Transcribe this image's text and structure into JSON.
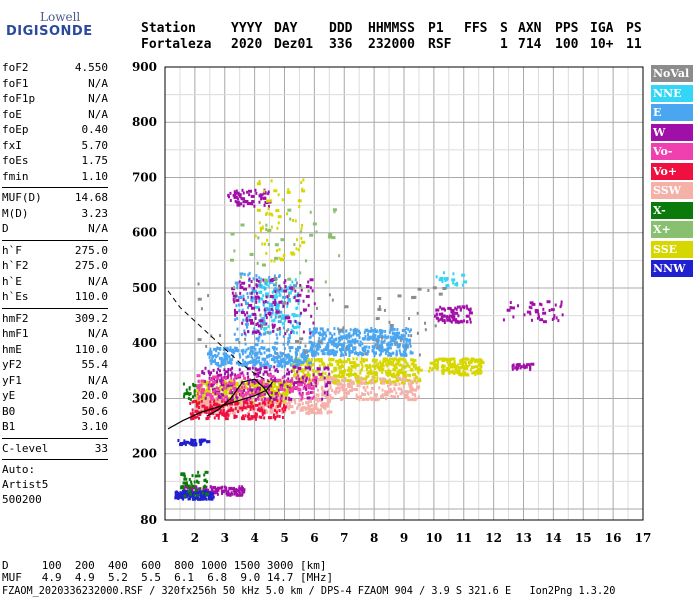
{
  "logo": {
    "line1": "Lowell",
    "line2": "DIGISONDE"
  },
  "header": {
    "labels": [
      "Station",
      "YYYY",
      "DAY",
      "DDD",
      "HHMMSS",
      "P1",
      "FFS",
      "S",
      "AXN",
      "PPS",
      "IGA",
      "PS"
    ],
    "values": [
      "Fortaleza",
      "2020",
      "Dez01",
      "336",
      "232000",
      "RSF",
      "1",
      "714",
      "100",
      "10+",
      "11"
    ]
  },
  "params": {
    "group1": [
      [
        "foF2",
        "4.550"
      ],
      [
        "foF1",
        "N/A"
      ],
      [
        "foF1p",
        "N/A"
      ],
      [
        "foE",
        "N/A"
      ],
      [
        "foEp",
        "0.40"
      ],
      [
        "fxI",
        "5.70"
      ],
      [
        "foEs",
        "1.75"
      ],
      [
        "fmin",
        "1.10"
      ]
    ],
    "group2": [
      [
        "MUF(D)",
        "14.68"
      ],
      [
        "M(D)",
        "3.23"
      ],
      [
        "D",
        "N/A"
      ]
    ],
    "group3": [
      [
        "h`F",
        "275.0"
      ],
      [
        "h`F2",
        "275.0"
      ],
      [
        "h`E",
        "N/A"
      ],
      [
        "h`Es",
        "110.0"
      ]
    ],
    "group4": [
      [
        "hmF2",
        "309.2"
      ],
      [
        "hmF1",
        "N/A"
      ],
      [
        "hmE",
        "110.0"
      ],
      [
        "yF2",
        "55.4"
      ],
      [
        "yF1",
        "N/A"
      ],
      [
        "yE",
        "20.0"
      ],
      [
        "B0",
        "50.6"
      ],
      [
        "B1",
        "3.10"
      ]
    ],
    "clevel": [
      "C-level",
      "33"
    ],
    "auto": [
      "Auto:",
      "Artist5",
      "500200"
    ]
  },
  "legend": [
    {
      "label": "NoVal",
      "color": "#8c8c8c"
    },
    {
      "label": "NNE",
      "color": "#33d6f5"
    },
    {
      "label": "E",
      "color": "#4aa6f0"
    },
    {
      "label": "W",
      "color": "#a010a8"
    },
    {
      "label": "Vo-",
      "color": "#f040b0"
    },
    {
      "label": "Vo+",
      "color": "#f01040"
    },
    {
      "label": "SSW",
      "color": "#f5b0a8"
    },
    {
      "label": "X-",
      "color": "#0a7a0a"
    },
    {
      "label": "X+",
      "color": "#88c070"
    },
    {
      "label": "SSE",
      "color": "#d6d600"
    },
    {
      "label": "NNW",
      "color": "#2020d0"
    }
  ],
  "bottom": {
    "d_line": "D     100  200  400  600  800 1000 1500 3000 [km]",
    "muf_line": "MUF   4.9  4.9  5.2  5.5  6.1  6.8  9.0 14.7 [MHz]",
    "file_line": "FZAOM_2020336232000.RSF / 320fx256h 50 kHz 5.0 km / DPS-4 FZAOM 904 / 3.9 S 321.6 E   Ion2Png 1.3.20"
  },
  "chart_data": {
    "type": "scatter",
    "xlim": [
      1,
      17
    ],
    "ylim": [
      80,
      900
    ],
    "x_ticks": [
      1,
      2,
      3,
      4,
      5,
      6,
      7,
      8,
      9,
      10,
      11,
      12,
      13,
      14,
      15,
      16,
      17
    ],
    "y_ticks": [
      80,
      200,
      300,
      400,
      500,
      600,
      700,
      800,
      900
    ],
    "grid": true,
    "clusters": [
      {
        "color": "#d6d600",
        "x": [
          2.0,
          5.2
        ],
        "y": [
          295,
          335
        ],
        "n": 380
      },
      {
        "color": "#d6d600",
        "x": [
          5.2,
          9.5
        ],
        "y": [
          330,
          375
        ],
        "n": 420
      },
      {
        "color": "#d6d600",
        "x": [
          9.8,
          11.6
        ],
        "y": [
          345,
          375
        ],
        "n": 160
      },
      {
        "color": "#4aa6f0",
        "x": [
          2.4,
          5.8
        ],
        "y": [
          360,
          395
        ],
        "n": 260
      },
      {
        "color": "#4aa6f0",
        "x": [
          5.8,
          9.2
        ],
        "y": [
          380,
          430
        ],
        "n": 380
      },
      {
        "color": "#f5b0a8",
        "x": [
          2.0,
          6.5
        ],
        "y": [
          275,
          305
        ],
        "n": 300
      },
      {
        "color": "#f5b0a8",
        "x": [
          6.0,
          9.5
        ],
        "y": [
          300,
          340
        ],
        "n": 200
      },
      {
        "color": "#f01040",
        "x": [
          1.8,
          5.0
        ],
        "y": [
          265,
          300
        ],
        "n": 200
      },
      {
        "color": "#a010a8",
        "x": [
          2.2,
          6.5
        ],
        "y": [
          300,
          360
        ],
        "n": 230
      },
      {
        "color": "#a010a8",
        "x": [
          3.0,
          4.5
        ],
        "y": [
          650,
          680
        ],
        "n": 60
      },
      {
        "color": "#a010a8",
        "x": [
          10.0,
          11.2
        ],
        "y": [
          440,
          470
        ],
        "n": 70
      },
      {
        "color": "#a010a8",
        "x": [
          1.6,
          3.6
        ],
        "y": [
          127,
          143
        ],
        "n": 120
      },
      {
        "color": "#f040b0",
        "x": [
          2.0,
          6.0
        ],
        "y": [
          300,
          345
        ],
        "n": 160
      },
      {
        "color": "#2020d0",
        "x": [
          1.3,
          2.6
        ],
        "y": [
          120,
          135
        ],
        "n": 120
      },
      {
        "color": "#2020d0",
        "x": [
          1.4,
          2.4
        ],
        "y": [
          218,
          228
        ],
        "n": 40
      },
      {
        "color": "#0a7a0a",
        "x": [
          1.5,
          2.4
        ],
        "y": [
          125,
          170
        ],
        "n": 50
      },
      {
        "color": "#0a7a0a",
        "x": [
          1.6,
          2.0
        ],
        "y": [
          300,
          330
        ],
        "n": 20
      },
      {
        "color": "#33d6f5",
        "x": [
          4.0,
          5.5
        ],
        "y": [
          420,
          520
        ],
        "n": 120
      },
      {
        "color": "#33d6f5",
        "x": [
          10.0,
          11.0
        ],
        "y": [
          500,
          535
        ],
        "n": 20
      },
      {
        "color": "#4aa6f0",
        "x": [
          3.3,
          5.3
        ],
        "y": [
          400,
          530
        ],
        "n": 140
      },
      {
        "color": "#a010a8",
        "x": [
          3.2,
          6.0
        ],
        "y": [
          420,
          520
        ],
        "n": 130
      },
      {
        "color": "#d6d600",
        "x": [
          4.0,
          5.6
        ],
        "y": [
          550,
          700
        ],
        "n": 60
      },
      {
        "color": "#a010a8",
        "x": [
          12.6,
          13.3
        ],
        "y": [
          355,
          365
        ],
        "n": 25
      },
      {
        "color": "#a010a8",
        "x": [
          12.3,
          14.3
        ],
        "y": [
          440,
          480
        ],
        "n": 40
      },
      {
        "color": "#88c070",
        "x": [
          3.0,
          7.0
        ],
        "y": [
          500,
          650
        ],
        "n": 40
      },
      {
        "color": "#8c8c8c",
        "x": [
          2.0,
          10.5
        ],
        "y": [
          380,
          520
        ],
        "n": 70
      }
    ],
    "dashed_curve": {
      "x": [
        1.1,
        1.5,
        2.0,
        2.5,
        3.0,
        3.5,
        4.0,
        4.5
      ],
      "y": [
        495,
        465,
        440,
        415,
        390,
        365,
        345,
        330
      ]
    },
    "profile_curve": {
      "x": [
        1.1,
        1.6,
        2.2,
        2.8,
        3.4,
        4.0,
        4.4,
        4.6
      ],
      "y": [
        245,
        260,
        275,
        285,
        295,
        305,
        315,
        330
      ]
    },
    "trace_curve": {
      "x": [
        2.4,
        2.8,
        3.2,
        3.6,
        4.0,
        4.3,
        4.55
      ],
      "y": [
        268,
        280,
        300,
        330,
        335,
        320,
        300
      ]
    }
  }
}
